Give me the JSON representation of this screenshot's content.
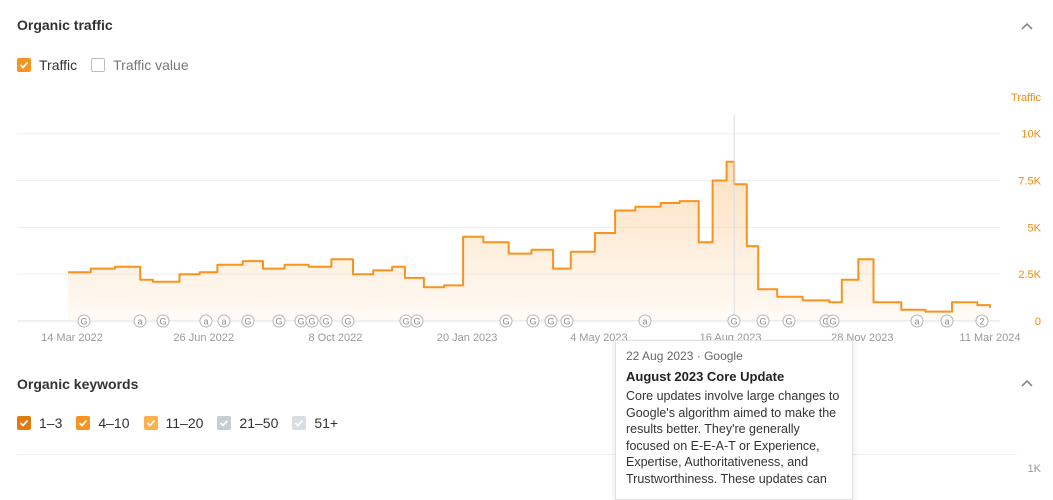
{
  "organic_traffic": {
    "title": "Organic traffic",
    "checkboxes": [
      {
        "label": "Traffic",
        "checked": true,
        "color": "#f7931e"
      },
      {
        "label": "Traffic value",
        "checked": false,
        "color": "#bdbdbd"
      }
    ]
  },
  "chart_data": {
    "type": "area",
    "series": [
      {
        "name": "Traffic",
        "color": "#f7931e"
      }
    ],
    "ylabel": "Traffic",
    "ylim": [
      0,
      11000
    ],
    "y_ticks": [
      "10K",
      "7.5K",
      "5K",
      "2.5K",
      "0"
    ],
    "x_ticks": [
      "14 Mar 2022",
      "26 Jun 2022",
      "8 Oct 2022",
      "20 Jan 2023",
      "4 May 2023",
      "16 Aug 2023",
      "28 Nov 2023",
      "11 Mar 2024"
    ],
    "x_range": [
      "2022-03-14",
      "2024-03-11"
    ],
    "x": [
      "2022-03-14",
      "2022-04-01",
      "2022-04-20",
      "2022-05-10",
      "2022-05-20",
      "2022-06-10",
      "2022-06-26",
      "2022-07-10",
      "2022-07-30",
      "2022-08-15",
      "2022-09-01",
      "2022-09-20",
      "2022-10-08",
      "2022-10-25",
      "2022-11-10",
      "2022-11-25",
      "2022-12-05",
      "2022-12-20",
      "2023-01-05",
      "2023-01-20",
      "2023-02-05",
      "2023-02-25",
      "2023-03-15",
      "2023-04-01",
      "2023-04-15",
      "2023-05-04",
      "2023-05-20",
      "2023-06-05",
      "2023-06-25",
      "2023-07-10",
      "2023-07-25",
      "2023-08-05",
      "2023-08-16",
      "2023-08-22",
      "2023-09-01",
      "2023-09-10",
      "2023-09-25",
      "2023-10-15",
      "2023-11-05",
      "2023-11-15",
      "2023-11-28",
      "2023-12-10",
      "2024-01-01",
      "2024-01-20",
      "2024-02-10",
      "2024-03-01",
      "2024-03-11"
    ],
    "values": [
      2600,
      2800,
      2900,
      2200,
      2100,
      2500,
      2600,
      3000,
      3200,
      2800,
      3000,
      2900,
      3300,
      2500,
      2700,
      2900,
      2300,
      1800,
      1900,
      4500,
      4200,
      3600,
      3800,
      2800,
      3700,
      4700,
      5900,
      6100,
      6300,
      6400,
      4200,
      7500,
      8500,
      7300,
      4000,
      1700,
      1300,
      1100,
      1000,
      2200,
      3300,
      1000,
      600,
      500,
      1000,
      850,
      700
    ],
    "annotations": [
      {
        "date": "22 Aug 2023",
        "source": "Google",
        "title": "August 2023 Core Update",
        "description": "Core updates involve large changes to Google's algorithm aimed to make the results better. They're generally focused on E-E-A-T or Experience, Expertise, Authoritativeness, and Trustworthiness. These updates can"
      }
    ]
  },
  "markers": {
    "x": [
      84,
      140,
      163,
      206,
      224,
      248,
      279,
      301,
      312,
      326,
      348,
      406,
      417,
      506,
      533,
      551,
      567,
      645,
      734,
      763,
      789,
      826,
      833,
      917,
      947,
      982
    ],
    "labels": [
      "G",
      "a",
      "G",
      "a",
      "a",
      "G",
      "G",
      "G",
      "G",
      "G",
      "G",
      "G",
      "G",
      "G",
      "G",
      "G",
      "G",
      "a",
      "G",
      "G",
      "G",
      "G",
      "G",
      "a",
      "a",
      "2"
    ]
  },
  "tooltip": {
    "date_source": "22 Aug 2023 · Google",
    "title": "August 2023 Core Update",
    "body": "Core updates involve large changes to Google's algorithm aimed to make the results better. They're generally focused on E-E-A-T or Experience, Expertise, Authoritativeness, and Trustworthiness. These updates can"
  },
  "organic_keywords": {
    "title": "Organic keywords",
    "checkboxes": [
      {
        "label": "1–3",
        "checked": true,
        "color": "#e07b10"
      },
      {
        "label": "4–10",
        "checked": true,
        "color": "#f7931e"
      },
      {
        "label": "11–20",
        "checked": true,
        "color": "#fbb04c"
      },
      {
        "label": "21–50",
        "checked": true,
        "color": "#c7cdd6"
      },
      {
        "label": "51+",
        "checked": true,
        "color": "#d9dee5"
      }
    ],
    "y_tick_top": "1K"
  }
}
